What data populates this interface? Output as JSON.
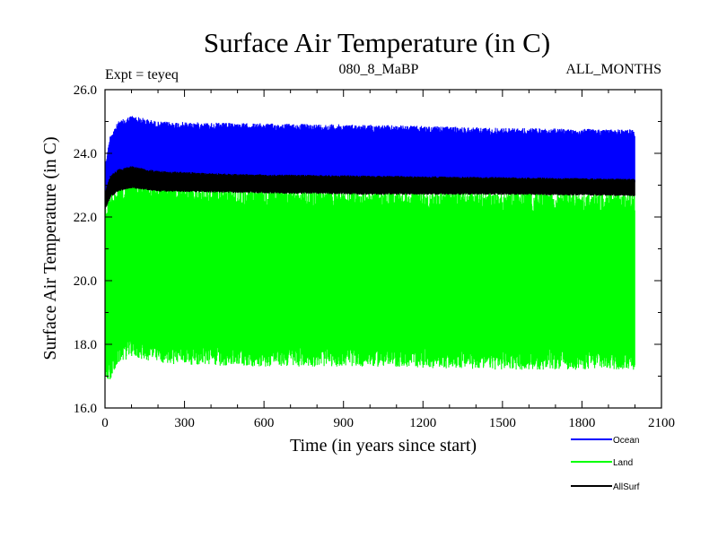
{
  "chart_data": {
    "type": "area",
    "title": "Surface Air Temperature (in C)",
    "subtitle_left": "Expt = teyeq",
    "subtitle_center": "080_8_MaBP",
    "subtitle_right": "ALL_MONTHS",
    "xlabel": "Time (in years since start)",
    "ylabel": "Surface Air Temperature (in C)",
    "xlim": [
      0,
      2100
    ],
    "ylim": [
      16,
      26
    ],
    "xticks": [
      "0",
      "300",
      "600",
      "900",
      "1200",
      "1500",
      "1800",
      "2100"
    ],
    "yticks": [
      "16.0",
      "18.0",
      "20.0",
      "22.0",
      "24.0",
      "26.0"
    ],
    "x_end": 2000,
    "legend_position": "bottom-right",
    "series": [
      {
        "name": "Ocean",
        "color": "#0000ff",
        "band": [
          {
            "x": 0,
            "low": 22.5,
            "high": 23.6
          },
          {
            "x": 20,
            "low": 22.8,
            "high": 24.6
          },
          {
            "x": 50,
            "low": 23.0,
            "high": 25.0
          },
          {
            "x": 100,
            "low": 23.1,
            "high": 25.2
          },
          {
            "x": 200,
            "low": 23.1,
            "high": 25.0
          },
          {
            "x": 500,
            "low": 23.1,
            "high": 24.95
          },
          {
            "x": 1000,
            "low": 23.0,
            "high": 24.9
          },
          {
            "x": 1500,
            "low": 22.95,
            "high": 24.8
          },
          {
            "x": 2000,
            "low": 22.9,
            "high": 24.75
          }
        ]
      },
      {
        "name": "Land",
        "color": "#00ff00",
        "band": [
          {
            "x": 0,
            "low": 17.0,
            "high": 22.3
          },
          {
            "x": 20,
            "low": 16.8,
            "high": 22.8
          },
          {
            "x": 50,
            "low": 17.4,
            "high": 23.1
          },
          {
            "x": 100,
            "low": 17.6,
            "high": 23.3
          },
          {
            "x": 200,
            "low": 17.4,
            "high": 23.1
          },
          {
            "x": 500,
            "low": 17.3,
            "high": 23.0
          },
          {
            "x": 1000,
            "low": 17.3,
            "high": 22.9
          },
          {
            "x": 1500,
            "low": 17.2,
            "high": 22.85
          },
          {
            "x": 2000,
            "low": 17.2,
            "high": 22.8
          }
        ]
      },
      {
        "name": "AllSurf",
        "color": "#000000",
        "band": [
          {
            "x": 0,
            "low": 22.2,
            "high": 22.8
          },
          {
            "x": 20,
            "low": 22.6,
            "high": 23.3
          },
          {
            "x": 50,
            "low": 22.8,
            "high": 23.5
          },
          {
            "x": 100,
            "low": 22.9,
            "high": 23.6
          },
          {
            "x": 200,
            "low": 22.8,
            "high": 23.45
          },
          {
            "x": 500,
            "low": 22.75,
            "high": 23.35
          },
          {
            "x": 1000,
            "low": 22.7,
            "high": 23.3
          },
          {
            "x": 1500,
            "low": 22.7,
            "high": 23.25
          },
          {
            "x": 2000,
            "low": 22.65,
            "high": 23.2
          }
        ]
      }
    ]
  }
}
